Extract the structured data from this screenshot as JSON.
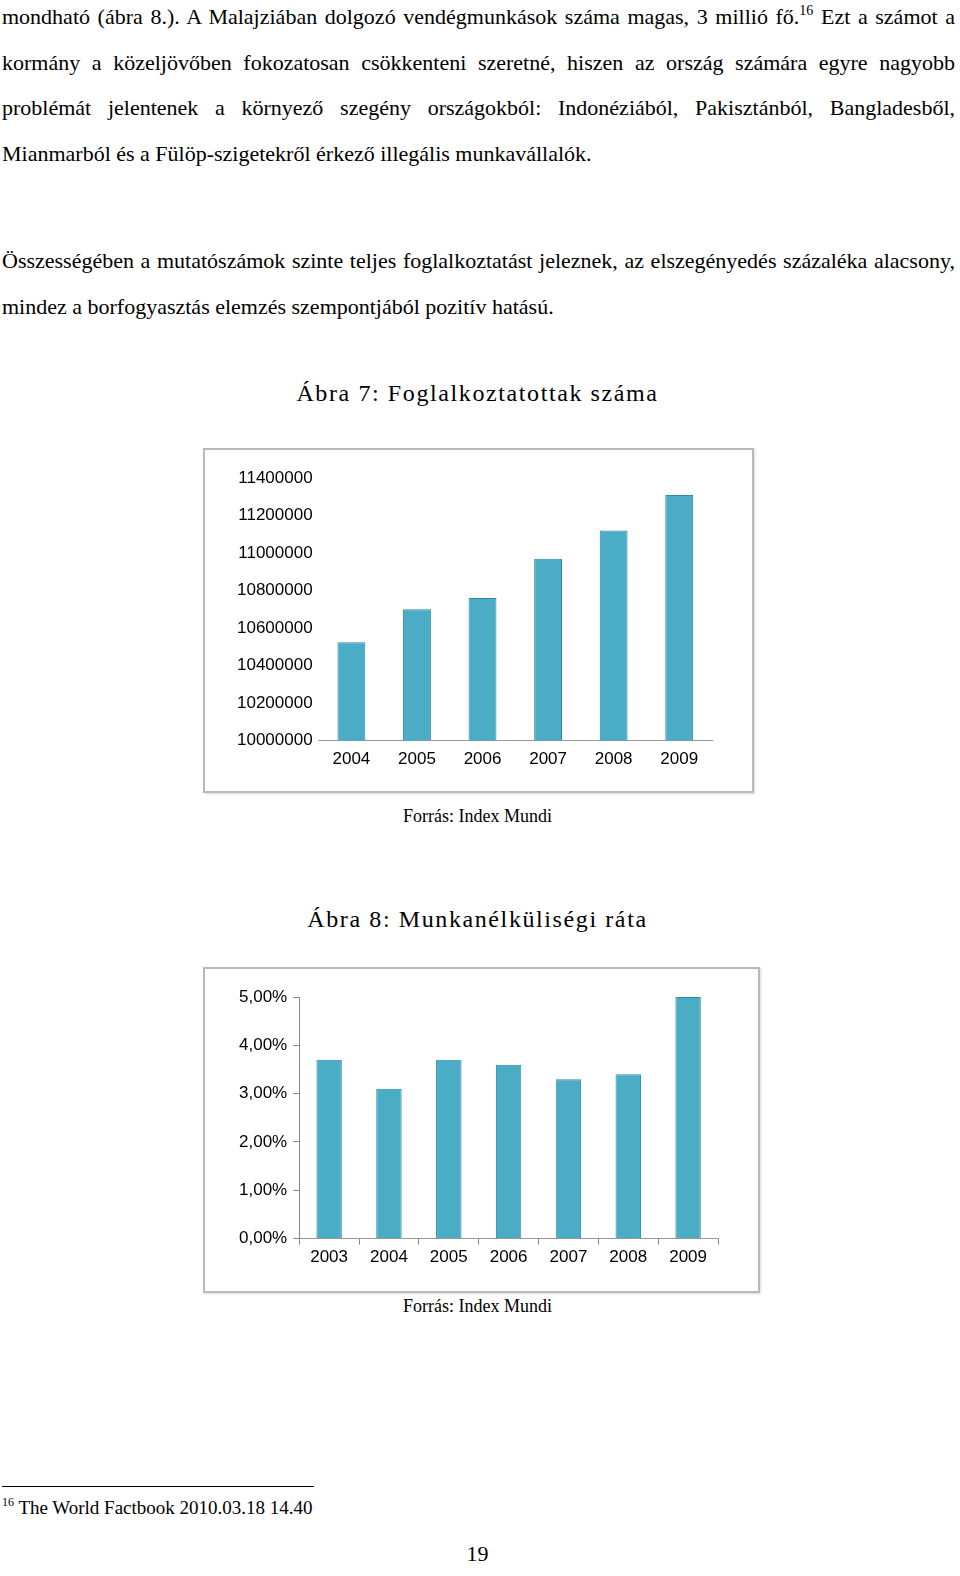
{
  "document": {
    "paragraphs": [
      {
        "before": "mondható (ábra 8.). A Malajziában dolgozó vendégmunkások száma magas, 3 millió fő.",
        "footnote_mark": "16",
        "after": "Ezt a számot a kormány a közeljövőben fokozatosan csökkenteni szeretné, hiszen az ország számára egyre nagyobb problémát jelentenek a környező szegény országokból: Indonéziából, Pakisztánból, Bangladesből, Mianmarból és a Fülöp-szigetekről érkező illegális munkavállalók."
      },
      {
        "before": "Összességében a mutatószámok szinte teljes foglalkoztatást jeleznek, az elszegényedés százaléka alacsony, mindez a borfogyasztás elemzés szempontjából pozitív hatású.",
        "footnote_mark": null,
        "after": null
      }
    ],
    "footnote": {
      "mark": "16",
      "text": "The World Factbook 2010.03.18 14.40"
    },
    "page_number": "19"
  },
  "chart_data": [
    {
      "type": "bar",
      "title": "Ábra 7: Foglalkoztatottak száma",
      "source": "Forrás: Index Mundi",
      "categories": [
        "2004",
        "2005",
        "2006",
        "2007",
        "2008",
        "2009"
      ],
      "values": [
        10525000,
        10700000,
        10760000,
        10970000,
        11120000,
        11310000
      ],
      "color": "#4bacc6",
      "ylim": [
        10000000,
        11400000
      ],
      "yticks": [
        10000000,
        10200000,
        10400000,
        10600000,
        10800000,
        11000000,
        11200000,
        11400000
      ],
      "grid": false
    },
    {
      "type": "bar",
      "title": "Ábra 8: Munkanélküliségi ráta",
      "source": "Forrás: Index Mundi",
      "categories": [
        "2003",
        "2004",
        "2005",
        "2006",
        "2007",
        "2008",
        "2009"
      ],
      "values": [
        3.7,
        3.1,
        3.7,
        3.6,
        3.3,
        3.4,
        5.0
      ],
      "color": "#4bacc6",
      "ylim": [
        0,
        5
      ],
      "yticks": [
        {
          "value": 0,
          "label": "0,00%"
        },
        {
          "value": 1,
          "label": "1,00%"
        },
        {
          "value": 2,
          "label": "2,00%"
        },
        {
          "value": 3,
          "label": "3,00%"
        },
        {
          "value": 4,
          "label": "4,00%"
        },
        {
          "value": 5,
          "label": "5,00%"
        }
      ],
      "grid": false
    }
  ]
}
